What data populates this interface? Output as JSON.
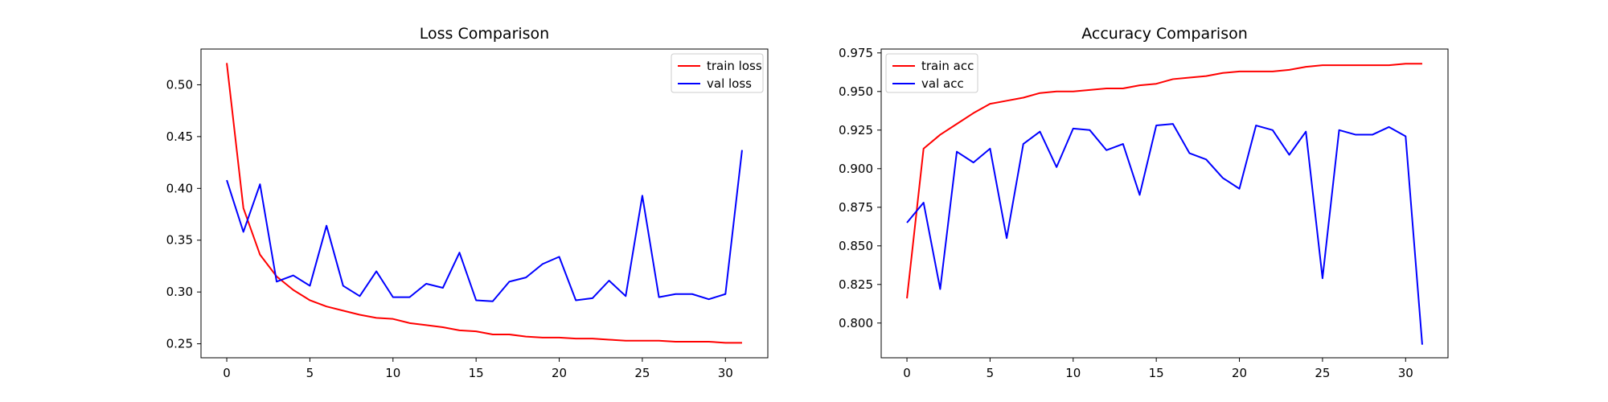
{
  "chart_data": [
    {
      "type": "line",
      "title": "Loss Comparison",
      "xlabel": "",
      "ylabel": "",
      "xlim": [
        -1.55,
        32.55
      ],
      "ylim": [
        0.2365,
        0.5345
      ],
      "xticks": [
        0,
        5,
        10,
        15,
        20,
        25,
        30
      ],
      "yticks": [
        0.25,
        0.3,
        0.35,
        0.4,
        0.45,
        0.5
      ],
      "ytick_labels": [
        "0.25",
        "0.30",
        "0.35",
        "0.40",
        "0.45",
        "0.50"
      ],
      "grid": false,
      "legend_position": "upper right",
      "x": [
        0,
        1,
        2,
        3,
        4,
        5,
        6,
        7,
        8,
        9,
        10,
        11,
        12,
        13,
        14,
        15,
        16,
        17,
        18,
        19,
        20,
        21,
        22,
        23,
        24,
        25,
        26,
        27,
        28,
        29,
        30,
        31
      ],
      "series": [
        {
          "name": "train loss",
          "color": "#ff0000",
          "values": [
            0.521,
            0.381,
            0.336,
            0.315,
            0.302,
            0.292,
            0.286,
            0.282,
            0.278,
            0.275,
            0.274,
            0.27,
            0.268,
            0.266,
            0.263,
            0.262,
            0.259,
            0.259,
            0.257,
            0.256,
            0.256,
            0.255,
            0.255,
            0.254,
            0.253,
            0.253,
            0.253,
            0.252,
            0.252,
            0.252,
            0.251,
            0.251
          ]
        },
        {
          "name": "val loss",
          "color": "#0000ff",
          "values": [
            0.408,
            0.358,
            0.404,
            0.31,
            0.316,
            0.306,
            0.364,
            0.306,
            0.296,
            0.32,
            0.295,
            0.295,
            0.308,
            0.304,
            0.338,
            0.292,
            0.291,
            0.31,
            0.314,
            0.327,
            0.334,
            0.292,
            0.294,
            0.311,
            0.296,
            0.393,
            0.295,
            0.298,
            0.298,
            0.293,
            0.298,
            0.437
          ]
        }
      ]
    },
    {
      "type": "line",
      "title": "Accuracy Comparison",
      "xlabel": "",
      "ylabel": "",
      "xlim": [
        -1.55,
        32.55
      ],
      "ylim": [
        0.7775,
        0.9775
      ],
      "xticks": [
        0,
        5,
        10,
        15,
        20,
        25,
        30
      ],
      "yticks": [
        0.8,
        0.825,
        0.85,
        0.875,
        0.9,
        0.925,
        0.95,
        0.975
      ],
      "ytick_labels": [
        "0.800",
        "0.825",
        "0.850",
        "0.875",
        "0.900",
        "0.925",
        "0.950",
        "0.975"
      ],
      "grid": false,
      "legend_position": "upper left",
      "x": [
        0,
        1,
        2,
        3,
        4,
        5,
        6,
        7,
        8,
        9,
        10,
        11,
        12,
        13,
        14,
        15,
        16,
        17,
        18,
        19,
        20,
        21,
        22,
        23,
        24,
        25,
        26,
        27,
        28,
        29,
        30,
        31
      ],
      "series": [
        {
          "name": "train acc",
          "color": "#ff0000",
          "values": [
            0.816,
            0.913,
            0.922,
            0.929,
            0.936,
            0.942,
            0.944,
            0.946,
            0.949,
            0.95,
            0.95,
            0.951,
            0.952,
            0.952,
            0.954,
            0.955,
            0.958,
            0.959,
            0.96,
            0.962,
            0.963,
            0.963,
            0.963,
            0.964,
            0.966,
            0.967,
            0.967,
            0.967,
            0.967,
            0.967,
            0.968,
            0.968
          ]
        },
        {
          "name": "val acc",
          "color": "#0000ff",
          "values": [
            0.865,
            0.878,
            0.822,
            0.911,
            0.904,
            0.913,
            0.855,
            0.916,
            0.924,
            0.901,
            0.926,
            0.925,
            0.912,
            0.916,
            0.883,
            0.928,
            0.929,
            0.91,
            0.906,
            0.894,
            0.887,
            0.928,
            0.925,
            0.909,
            0.924,
            0.829,
            0.925,
            0.922,
            0.922,
            0.927,
            0.921,
            0.786
          ]
        }
      ]
    }
  ]
}
